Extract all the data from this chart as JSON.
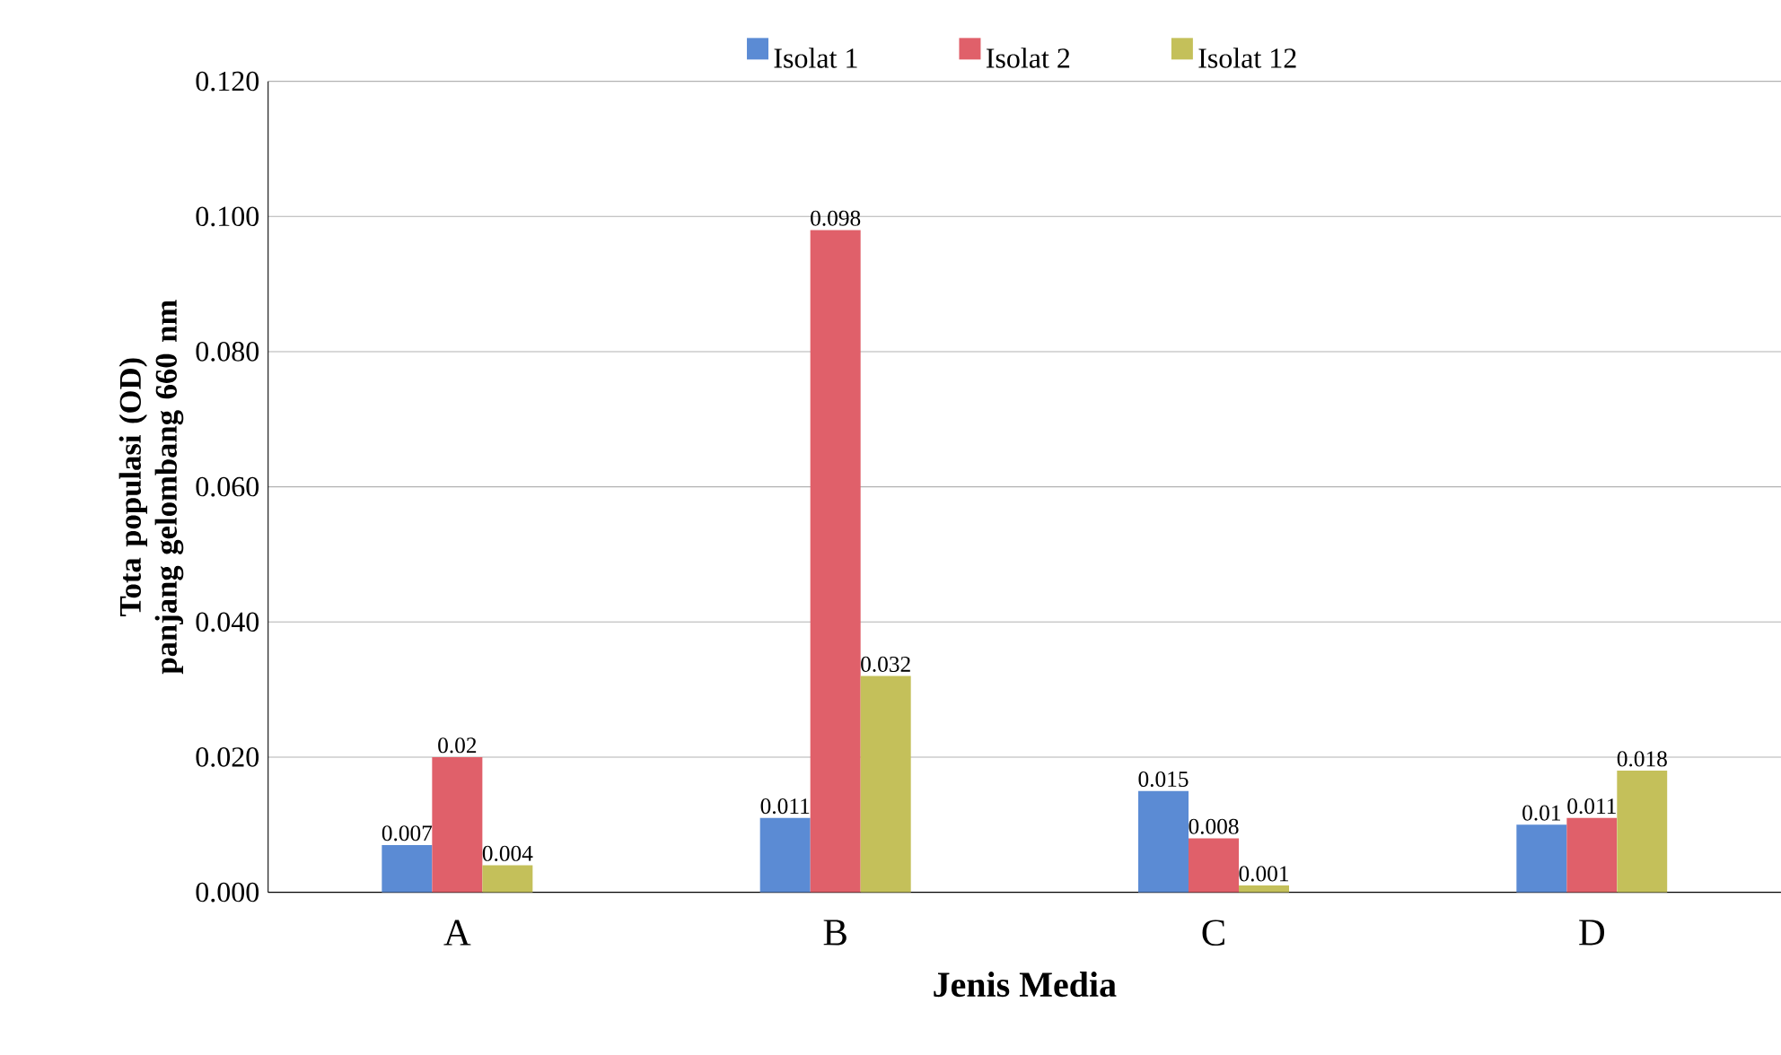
{
  "chart_data": {
    "type": "bar",
    "xlabel": "Jenis Media",
    "ylabel": "Tota populasi (OD) panjang gelombang 660 nm",
    "categories": [
      "A",
      "B",
      "C",
      "D"
    ],
    "series": [
      {
        "name": "Isolat 1",
        "color": "#5b8bd4",
        "values": [
          0.007,
          0.011,
          0.015,
          0.01
        ],
        "value_labels": [
          "0.007",
          "0.011",
          "0.015",
          "0.01"
        ]
      },
      {
        "name": "Isolat 2",
        "color": "#e0606a",
        "values": [
          0.02,
          0.098,
          0.008,
          0.011
        ],
        "value_labels": [
          "0.02",
          "0.098",
          "0.008",
          "0.011"
        ]
      },
      {
        "name": "Isolat 12",
        "color": "#c4c05a",
        "values": [
          0.004,
          0.032,
          0.001,
          0.018
        ],
        "value_labels": [
          "0.004",
          "0.032",
          "0.001",
          "0.018"
        ]
      }
    ],
    "ylim": [
      0,
      0.12
    ],
    "yticks": [
      {
        "value": 0,
        "label": "0.000"
      },
      {
        "value": 0.02,
        "label": "0.020"
      },
      {
        "value": 0.04,
        "label": "0.040"
      },
      {
        "value": 0.06,
        "label": "0.060"
      },
      {
        "value": 0.08,
        "label": "0.080"
      },
      {
        "value": 0.1,
        "label": "0.100"
      },
      {
        "value": 0.12,
        "label": "0.120"
      }
    ],
    "grid": "y",
    "legend": "top"
  }
}
